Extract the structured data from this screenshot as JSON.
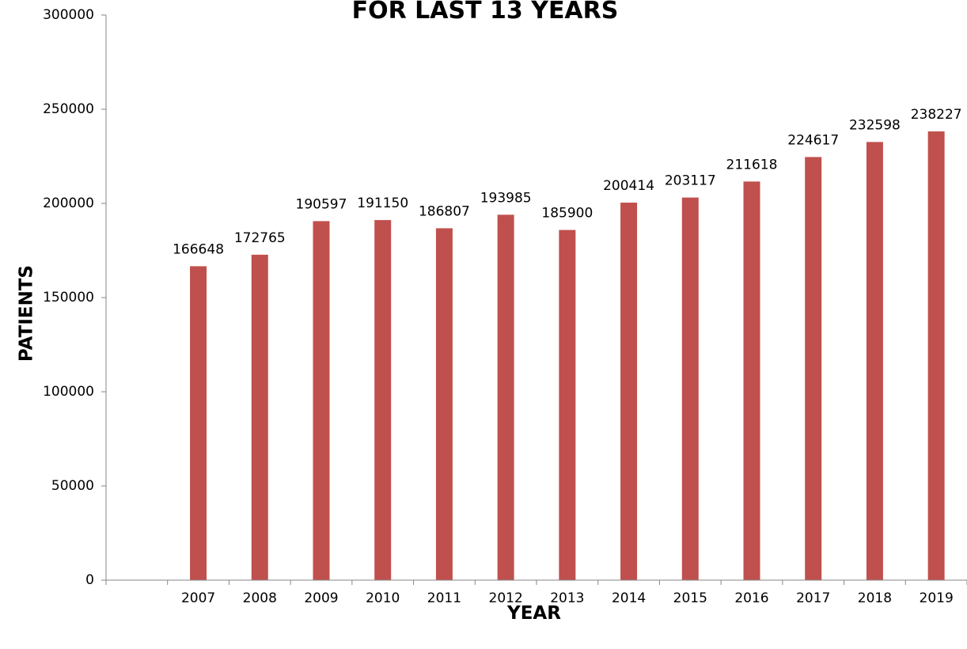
{
  "chart_data": {
    "type": "bar",
    "title": "FOR LAST 13 YEARS",
    "xlabel": "YEAR",
    "ylabel": "PATIENTS",
    "categories": [
      "",
      "2007",
      "2008",
      "2009",
      "2010",
      "2011",
      "2012",
      "2013",
      "2014",
      "2015",
      "2016",
      "2017",
      "2018",
      "2019"
    ],
    "values": [
      null,
      166648,
      172765,
      190597,
      191150,
      186807,
      193985,
      185900,
      200414,
      203117,
      211618,
      224617,
      232598,
      238227
    ],
    "data_labels": [
      "",
      "166648",
      "172765",
      "190597",
      "191150",
      "186807",
      "193985",
      "185900",
      "200414",
      "203117",
      "211618",
      "224617",
      "232598",
      "238227"
    ],
    "ylim": [
      0,
      300000
    ],
    "yticks": [
      "0",
      "50000",
      "100000",
      "150000",
      "200000",
      "250000",
      "300000"
    ],
    "bar_color": "#C0504D",
    "grid": false,
    "legend": "none"
  }
}
